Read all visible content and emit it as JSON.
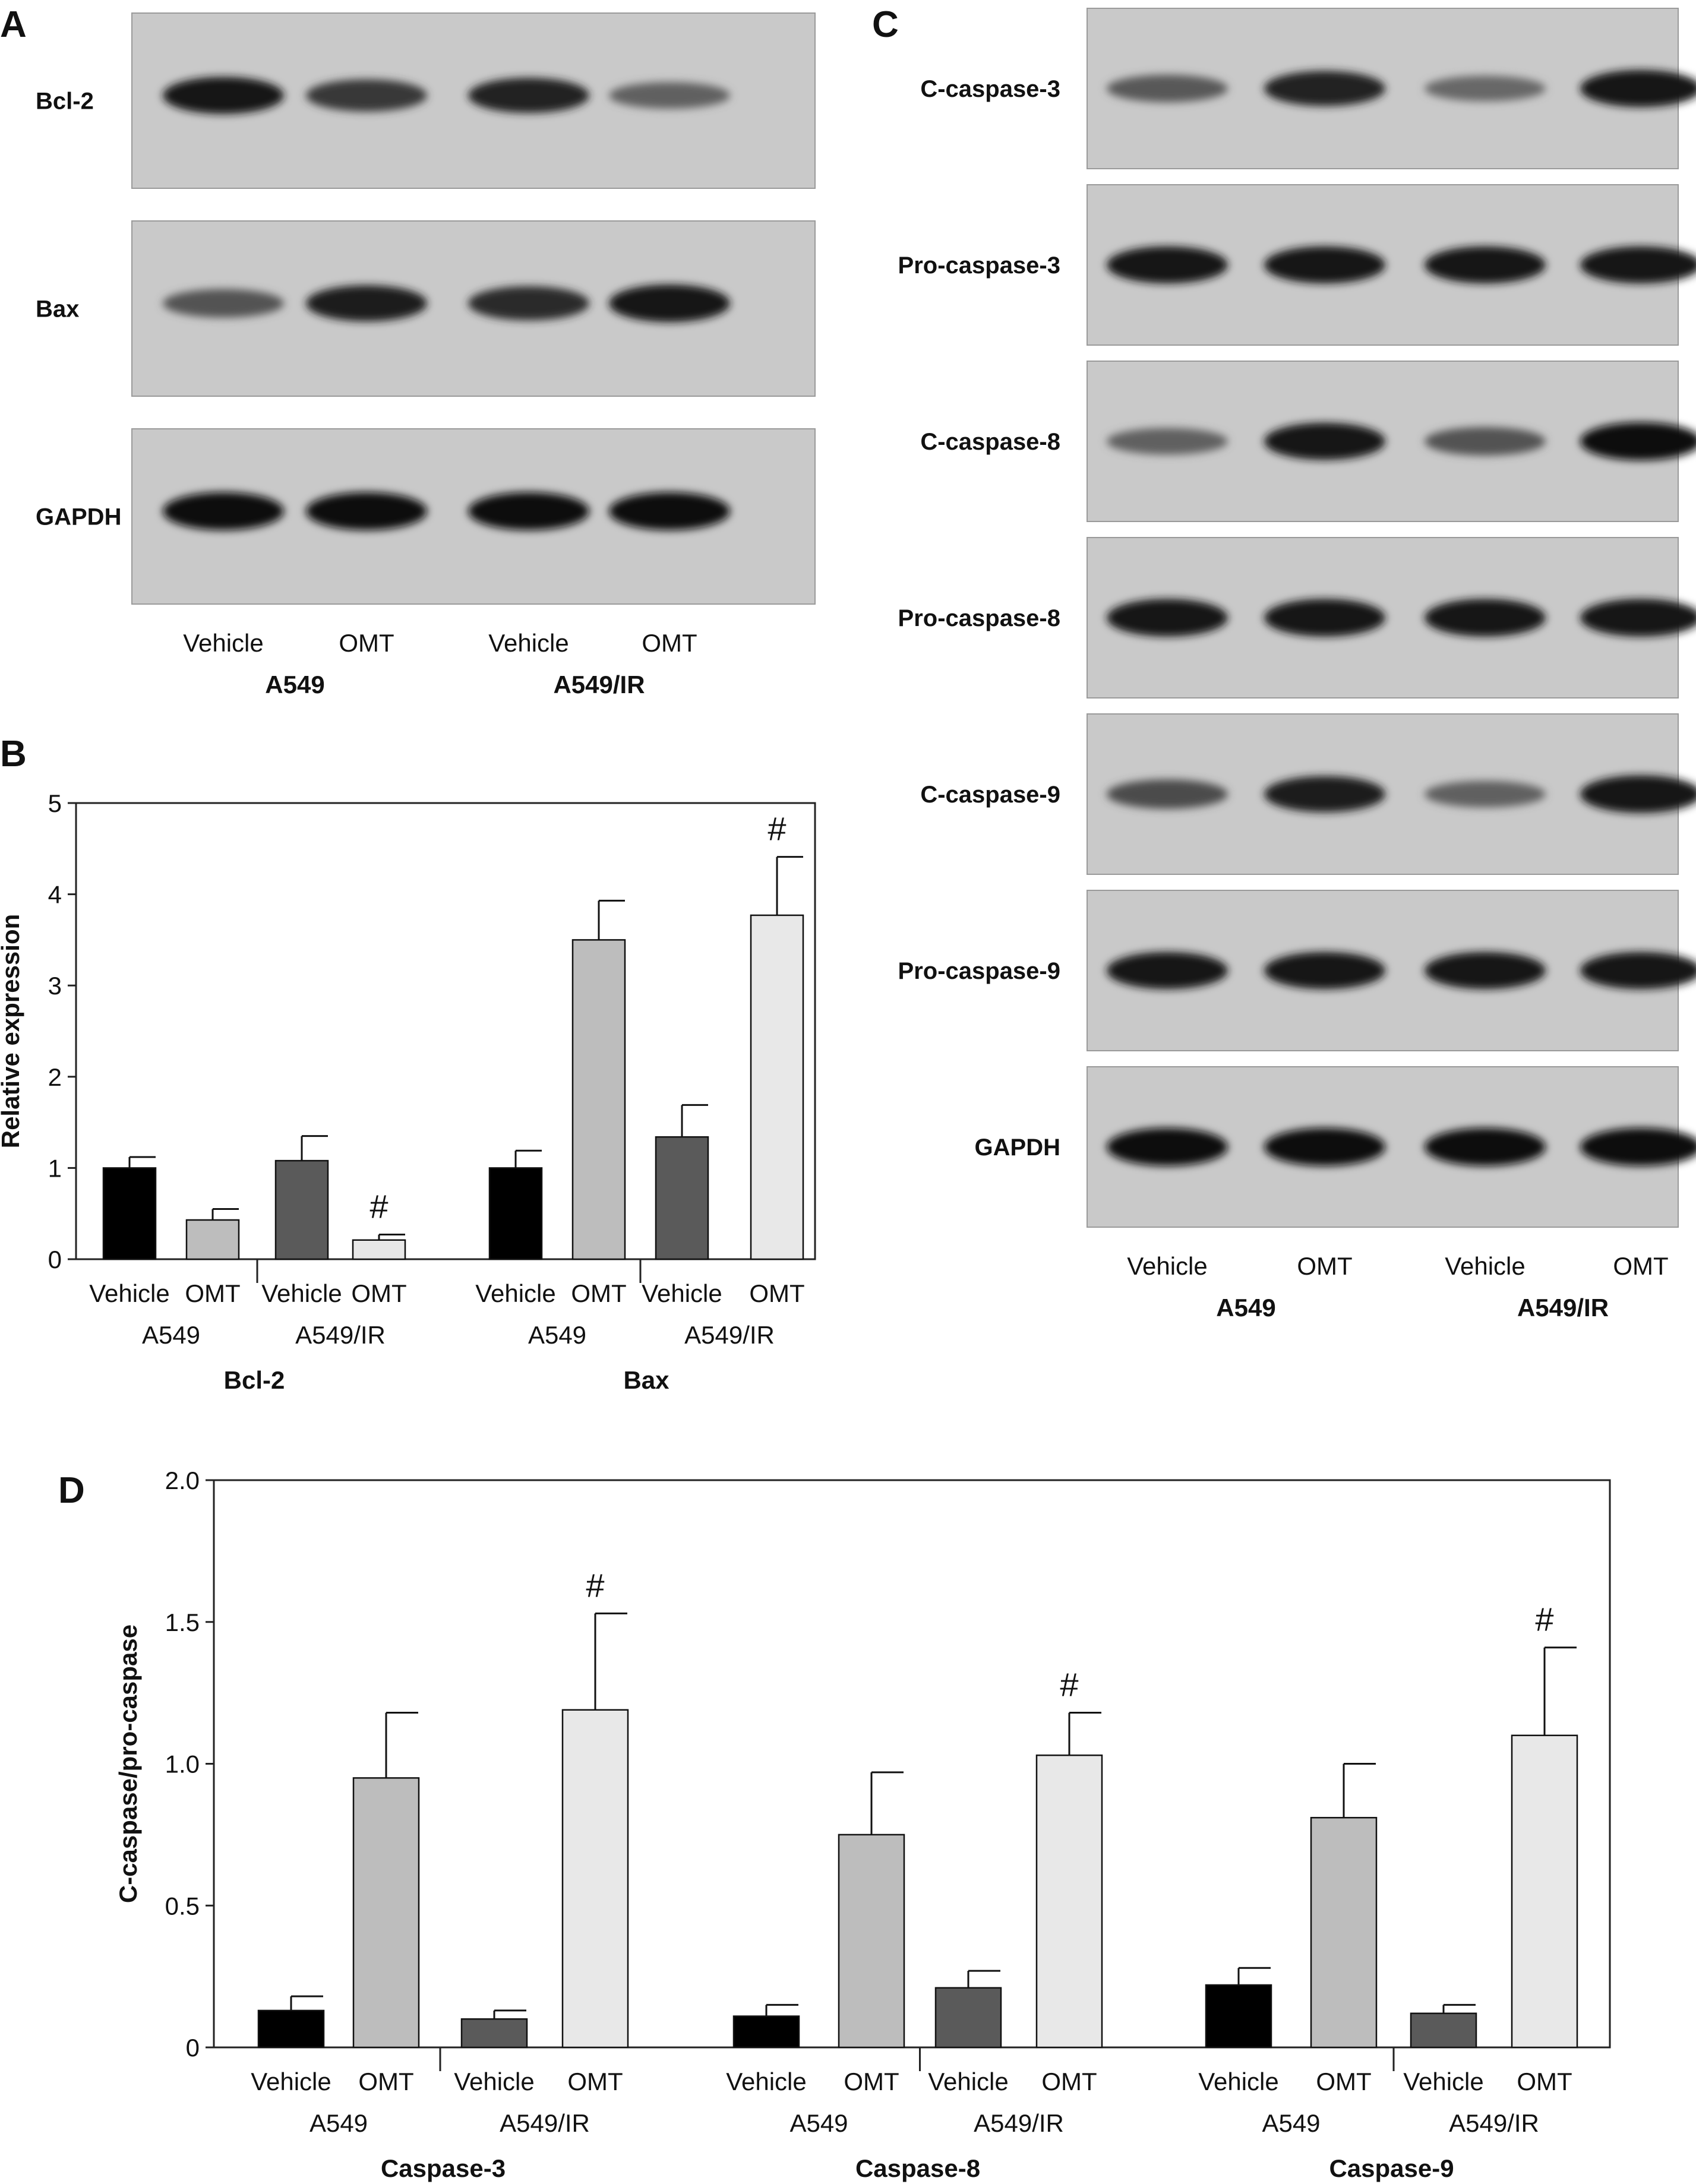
{
  "panels": {
    "A": {
      "letter": "A",
      "blots": [
        {
          "label": "Bcl-2",
          "band_intensity": [
            0.95,
            0.7,
            0.85,
            0.4
          ]
        },
        {
          "label": "Bax",
          "band_intensity": [
            0.5,
            0.9,
            0.8,
            0.98
          ]
        },
        {
          "label": "GAPDH",
          "band_intensity": [
            1.0,
            1.0,
            1.0,
            1.0
          ]
        }
      ],
      "lane_labels": [
        "Vehicle",
        "OMT",
        "Vehicle",
        "OMT"
      ],
      "group_labels": [
        "A549",
        "A549/IR"
      ]
    },
    "C": {
      "letter": "C",
      "blots": [
        {
          "label": "C-caspase-3",
          "band_intensity": [
            0.45,
            0.85,
            0.35,
            0.95
          ]
        },
        {
          "label": "Pro-caspase-3",
          "band_intensity": [
            0.95,
            0.95,
            0.95,
            0.95
          ]
        },
        {
          "label": "C-caspase-8",
          "band_intensity": [
            0.4,
            0.95,
            0.5,
            1.0
          ]
        },
        {
          "label": "Pro-caspase-8",
          "band_intensity": [
            0.98,
            0.98,
            0.98,
            0.98
          ]
        },
        {
          "label": "C-caspase-9",
          "band_intensity": [
            0.55,
            0.9,
            0.4,
            0.98
          ]
        },
        {
          "label": "Pro-caspase-9",
          "band_intensity": [
            0.95,
            0.95,
            0.95,
            0.95
          ]
        },
        {
          "label": "GAPDH",
          "band_intensity": [
            1.0,
            1.0,
            1.0,
            1.0
          ]
        }
      ],
      "lane_labels": [
        "Vehicle",
        "OMT",
        "Vehicle",
        "OMT"
      ],
      "group_labels": [
        "A549",
        "A549/IR"
      ]
    }
  },
  "chart_data": [
    {
      "panel": "B",
      "type": "bar",
      "ylabel": "Relative expression",
      "ylim": [
        0,
        5
      ],
      "yticks": [
        "0",
        "1",
        "2",
        "3",
        "4",
        "5"
      ],
      "bar_colors": [
        "#000000",
        "#bdbdbd",
        "#5a5a5a",
        "#e8e8e8"
      ],
      "groups": [
        {
          "name": "Bcl-2",
          "subgroups": [
            "A549",
            "A549/IR"
          ],
          "bars": [
            {
              "label": "Vehicle",
              "value": 1.0,
              "error": 0.12,
              "mark": ""
            },
            {
              "label": "OMT",
              "value": 0.43,
              "error": 0.12,
              "mark": ""
            },
            {
              "label": "Vehicle",
              "value": 1.08,
              "error": 0.27,
              "mark": ""
            },
            {
              "label": "OMT",
              "value": 0.21,
              "error": 0.06,
              "mark": "#"
            }
          ]
        },
        {
          "name": "Bax",
          "subgroups": [
            "A549",
            "A549/IR"
          ],
          "bars": [
            {
              "label": "Vehicle",
              "value": 1.0,
              "error": 0.19,
              "mark": ""
            },
            {
              "label": "OMT",
              "value": 3.5,
              "error": 0.43,
              "mark": ""
            },
            {
              "label": "Vehicle",
              "value": 1.34,
              "error": 0.35,
              "mark": ""
            },
            {
              "label": "OMT",
              "value": 3.77,
              "error": 0.64,
              "mark": "#"
            }
          ]
        }
      ]
    },
    {
      "panel": "D",
      "type": "bar",
      "ylabel": "C-caspase/pro-caspase",
      "ylim": [
        0,
        2.0
      ],
      "yticks": [
        "0",
        "0.5",
        "1.0",
        "1.5",
        "2.0"
      ],
      "bar_colors": [
        "#000000",
        "#bdbdbd",
        "#5a5a5a",
        "#e8e8e8"
      ],
      "groups": [
        {
          "name": "Caspase-3",
          "subgroups": [
            "A549",
            "A549/IR"
          ],
          "bars": [
            {
              "label": "Vehicle",
              "value": 0.13,
              "error": 0.05,
              "mark": ""
            },
            {
              "label": "OMT",
              "value": 0.95,
              "error": 0.23,
              "mark": ""
            },
            {
              "label": "Vehicle",
              "value": 0.1,
              "error": 0.03,
              "mark": ""
            },
            {
              "label": "OMT",
              "value": 1.19,
              "error": 0.34,
              "mark": "#"
            }
          ]
        },
        {
          "name": "Caspase-8",
          "subgroups": [
            "A549",
            "A549/IR"
          ],
          "bars": [
            {
              "label": "Vehicle",
              "value": 0.11,
              "error": 0.04,
              "mark": ""
            },
            {
              "label": "OMT",
              "value": 0.75,
              "error": 0.22,
              "mark": ""
            },
            {
              "label": "Vehicle",
              "value": 0.21,
              "error": 0.06,
              "mark": ""
            },
            {
              "label": "OMT",
              "value": 1.03,
              "error": 0.15,
              "mark": "#"
            }
          ]
        },
        {
          "name": "Caspase-9",
          "subgroups": [
            "A549",
            "A549/IR"
          ],
          "bars": [
            {
              "label": "Vehicle",
              "value": 0.22,
              "error": 0.06,
              "mark": ""
            },
            {
              "label": "OMT",
              "value": 0.81,
              "error": 0.19,
              "mark": ""
            },
            {
              "label": "Vehicle",
              "value": 0.12,
              "error": 0.03,
              "mark": ""
            },
            {
              "label": "OMT",
              "value": 1.1,
              "error": 0.31,
              "mark": "#"
            }
          ]
        }
      ]
    }
  ]
}
